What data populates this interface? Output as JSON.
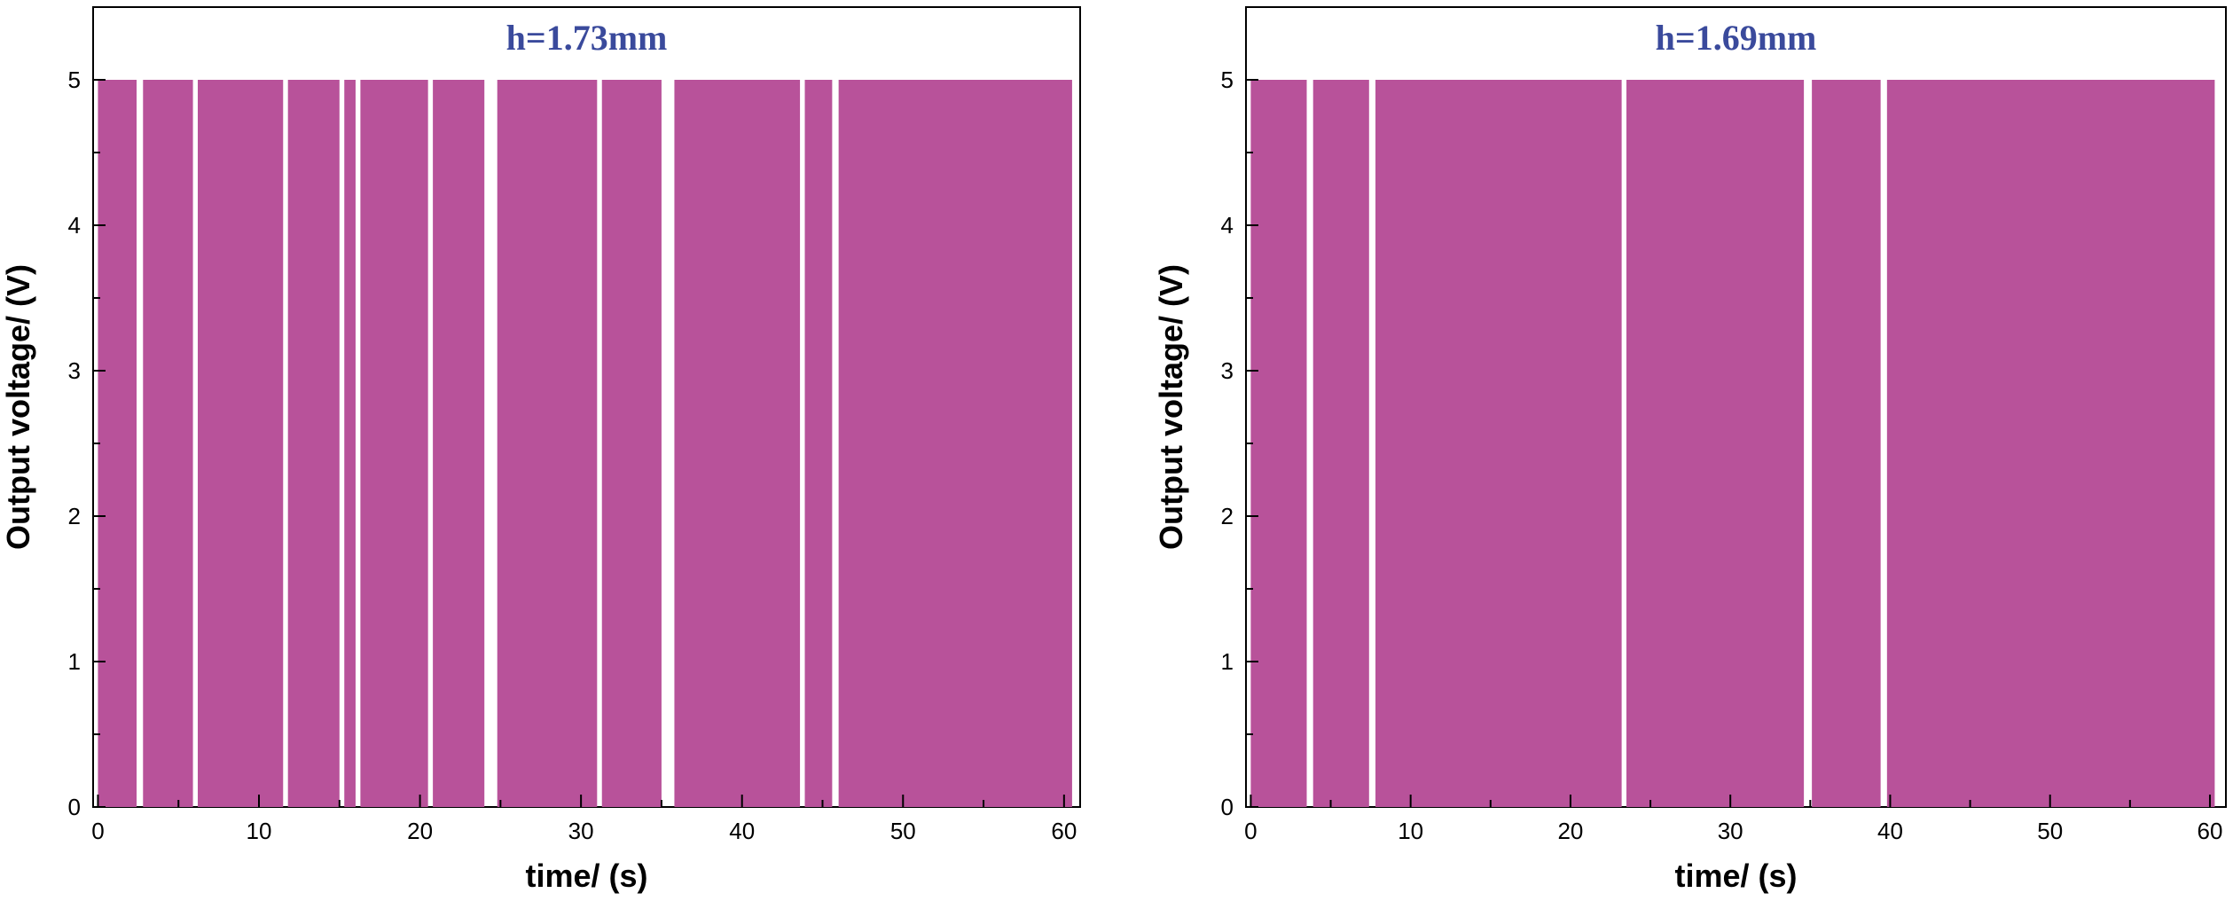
{
  "chart_data": [
    {
      "type": "bar",
      "title": "h=1.73mm",
      "xlabel": "time/ (s)",
      "ylabel": "Output voltage/ (V)",
      "xlim": [
        -0.3,
        61
      ],
      "ylim": [
        0,
        5.5
      ],
      "xticks": [
        0,
        10,
        20,
        30,
        40,
        50,
        60
      ],
      "yticks": [
        0,
        1,
        2,
        3,
        4,
        5
      ],
      "grid": false,
      "pulse_level": 5,
      "pulses": [
        {
          "start": 0.0,
          "end": 2.4,
          "value": 5
        },
        {
          "start": 2.8,
          "end": 5.9,
          "value": 5
        },
        {
          "start": 6.2,
          "end": 11.5,
          "value": 5
        },
        {
          "start": 11.8,
          "end": 15.0,
          "value": 5
        },
        {
          "start": 15.3,
          "end": 16.0,
          "value": 5
        },
        {
          "start": 16.3,
          "end": 20.5,
          "value": 5
        },
        {
          "start": 20.8,
          "end": 24.0,
          "value": 5
        },
        {
          "start": 24.8,
          "end": 31.0,
          "value": 5
        },
        {
          "start": 31.3,
          "end": 35.0,
          "value": 5
        },
        {
          "start": 35.8,
          "end": 43.6,
          "value": 5
        },
        {
          "start": 43.9,
          "end": 45.6,
          "value": 5
        },
        {
          "start": 46.0,
          "end": 60.5,
          "value": 5
        }
      ],
      "colors": {
        "fill": "#b8529a",
        "title": "#3a4a9c"
      }
    },
    {
      "type": "bar",
      "title": "h=1.69mm",
      "xlabel": "time/ (s)",
      "ylabel": "Output voltage/ (V)",
      "xlim": [
        -0.3,
        61
      ],
      "ylim": [
        0,
        5.5
      ],
      "xticks": [
        0,
        10,
        20,
        30,
        40,
        50,
        60
      ],
      "yticks": [
        0,
        1,
        2,
        3,
        4,
        5
      ],
      "grid": false,
      "pulse_level": 5,
      "pulses": [
        {
          "start": 0.0,
          "end": 3.5,
          "value": 5
        },
        {
          "start": 3.9,
          "end": 7.4,
          "value": 5
        },
        {
          "start": 7.8,
          "end": 23.2,
          "value": 5
        },
        {
          "start": 23.5,
          "end": 34.6,
          "value": 5
        },
        {
          "start": 35.1,
          "end": 39.4,
          "value": 5
        },
        {
          "start": 39.8,
          "end": 60.3,
          "value": 5
        }
      ],
      "colors": {
        "fill": "#b8529a",
        "title": "#3a4a9c"
      }
    }
  ]
}
